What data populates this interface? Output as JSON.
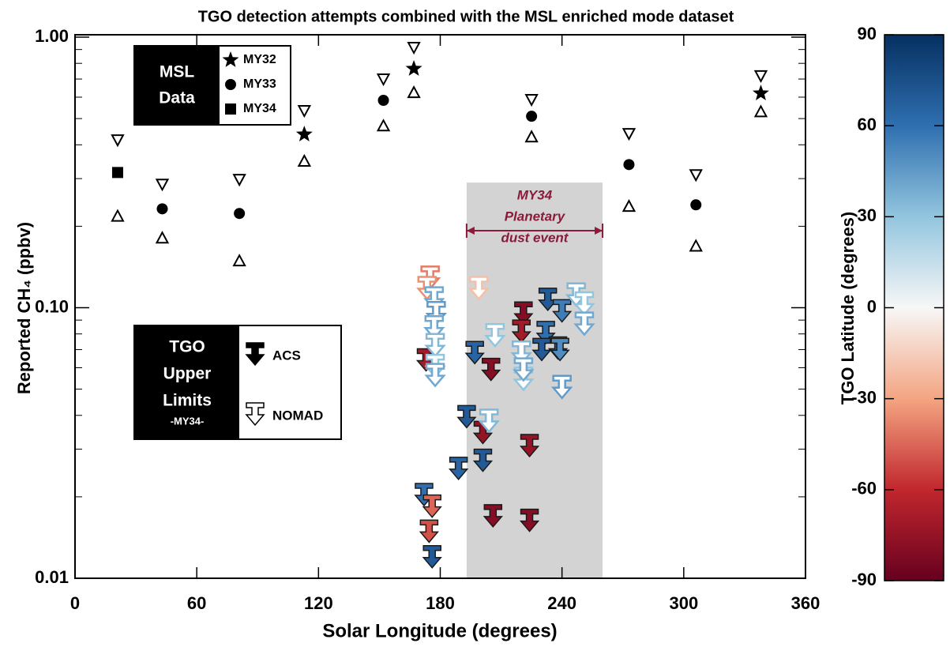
{
  "chart_data": {
    "type": "scatter",
    "title": "TGO detection attempts combined with the MSL enriched mode dataset",
    "x_label": "Solar Longitude (degrees)",
    "y_label": "Reported CH₄ (ppbv)",
    "xlim": [
      0,
      360
    ],
    "xticks": [
      0,
      60,
      120,
      180,
      240,
      300,
      360
    ],
    "ylim": [
      0.01,
      1
    ],
    "yscale": "log",
    "yticks": [
      0.01,
      {
        "value": 0.1,
        "label": "0.10"
      },
      {
        "value": 1,
        "label": "1.00"
      }
    ],
    "yminorticks": [
      0.02,
      0.03,
      0.04,
      0.05,
      0.06,
      0.07,
      0.08,
      0.09,
      0.2,
      0.3,
      0.4,
      0.5,
      0.6,
      0.7,
      0.8,
      0.9
    ],
    "msl_legend_title": [
      "MSL",
      "Data"
    ],
    "series": [
      {
        "name": "MY32",
        "marker": "star",
        "color": "#000000",
        "x": [
          113,
          167,
          338
        ],
        "values": [
          0.437,
          0.764,
          0.62
        ],
        "upper": [
          0.535,
          0.916,
          0.72
        ],
        "lower": [
          0.348,
          0.624,
          0.53
        ]
      },
      {
        "name": "MY33",
        "marker": "circle",
        "color": "#000000",
        "x": [
          43,
          81,
          152,
          225,
          273,
          306
        ],
        "values": [
          0.232,
          0.223,
          0.584,
          0.51,
          0.338,
          0.24
        ],
        "upper": [
          0.286,
          0.298,
          0.7,
          0.588,
          0.44,
          0.31
        ],
        "lower": [
          0.181,
          0.149,
          0.47,
          0.428,
          0.237,
          0.169
        ]
      },
      {
        "name": "MY34",
        "marker": "square",
        "color": "#000000",
        "x": [
          21
        ],
        "values": [
          0.316
        ],
        "upper": [
          0.417
        ],
        "lower": [
          0.218
        ]
      }
    ],
    "tgo_legend_title": [
      "TGO",
      "Upper",
      "Limits",
      "-MY34-"
    ],
    "upper_limits": [
      {
        "name": "ACS",
        "filled": true,
        "x": [
          172,
          176,
          176,
          174.5,
          173,
          189,
          193,
          197,
          201,
          205,
          206,
          221,
          220,
          224,
          224,
          233,
          232,
          238,
          240,
          239,
          201,
          230
        ],
        "values": [
          0.0224,
          0.0132,
          0.0203,
          0.0164,
          0.0705,
          0.028,
          0.0435,
          0.075,
          0.038,
          0.065,
          0.0187,
          0.105,
          0.09,
          0.034,
          0.018,
          0.118,
          0.089,
          0.078,
          0.107,
          0.077,
          0.03,
          0.077
        ],
        "latitude": [
          60,
          70,
          -45,
          -50,
          -70,
          65,
          70,
          65,
          -75,
          -80,
          -80,
          -80,
          -70,
          -75,
          -80,
          70,
          60,
          65,
          55,
          50,
          70,
          70
        ]
      },
      {
        "name": "NOMAD",
        "filled": false,
        "x": [
          175,
          173.5,
          177,
          178,
          177,
          177.5,
          177.5,
          177.5,
          199,
          207,
          204,
          220,
          221,
          221,
          247,
          251,
          251,
          240
        ],
        "values": [
          0.142,
          0.13,
          0.119,
          0.105,
          0.093,
          0.08,
          0.067,
          0.062,
          0.13,
          0.087,
          0.042,
          0.075,
          0.06,
          0.065,
          0.123,
          0.114,
          0.096,
          0.056
        ],
        "latitude": [
          -40,
          -35,
          40,
          45,
          40,
          35,
          30,
          40,
          -20,
          30,
          35,
          35,
          30,
          40,
          35,
          30,
          40,
          45
        ]
      }
    ],
    "annotation": {
      "text": [
        "MY34",
        "Planetary",
        "dust event"
      ],
      "xrange": [
        193,
        260
      ],
      "color": "#8b1a3a",
      "shade": "#d3d3d3"
    },
    "colorbar": {
      "label": "TGO Latitude (degrees)",
      "clim": [
        -90,
        90
      ],
      "ticks": [
        90,
        60,
        30,
        0,
        -30,
        -60,
        -90
      ],
      "colorscale": [
        "#67001f",
        "#c1272d",
        "#f4a582",
        "#f7f7f7",
        "#92c5de",
        "#2f6fb0",
        "#053061"
      ]
    }
  }
}
